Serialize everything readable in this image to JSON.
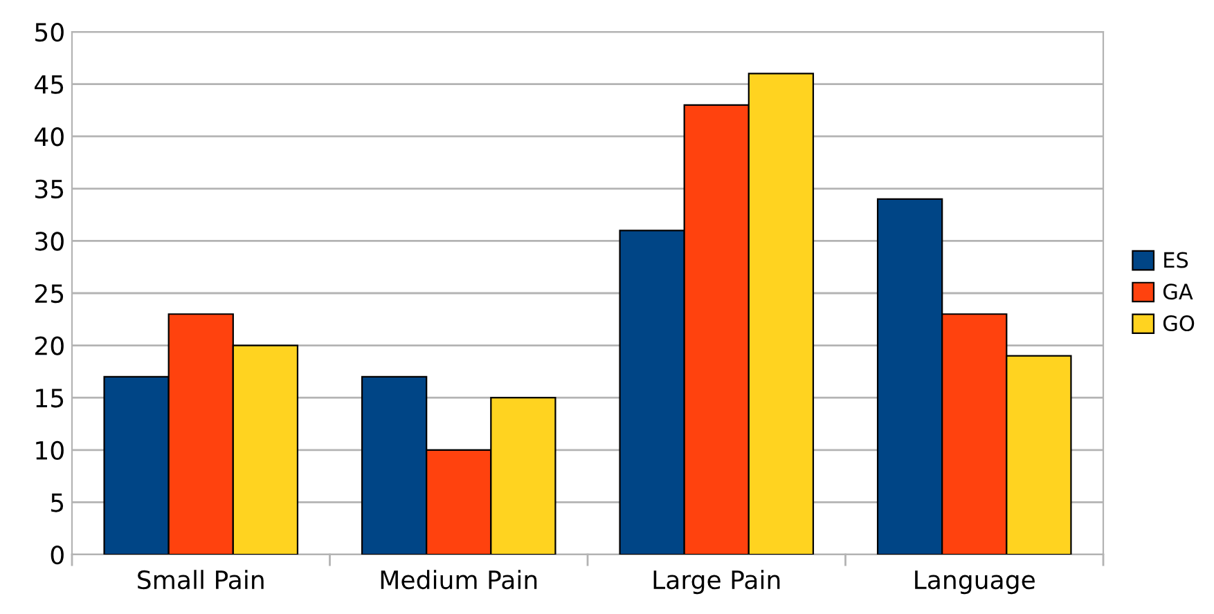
{
  "chart_data": {
    "type": "bar",
    "categories": [
      "Small Pain",
      "Medium Pain",
      "Large Pain",
      "Language"
    ],
    "series": [
      {
        "name": "ES",
        "color": "#004586",
        "values": [
          17,
          17,
          31,
          34
        ]
      },
      {
        "name": "GA",
        "color": "#ff420e",
        "values": [
          23,
          10,
          43,
          23
        ]
      },
      {
        "name": "GO",
        "color": "#ffd320",
        "values": [
          20,
          15,
          46,
          19
        ]
      }
    ],
    "ylim": [
      0,
      50
    ],
    "yticks": [
      0,
      5,
      10,
      15,
      20,
      25,
      30,
      35,
      40,
      45,
      50
    ],
    "grid": "y",
    "legend": "right"
  }
}
